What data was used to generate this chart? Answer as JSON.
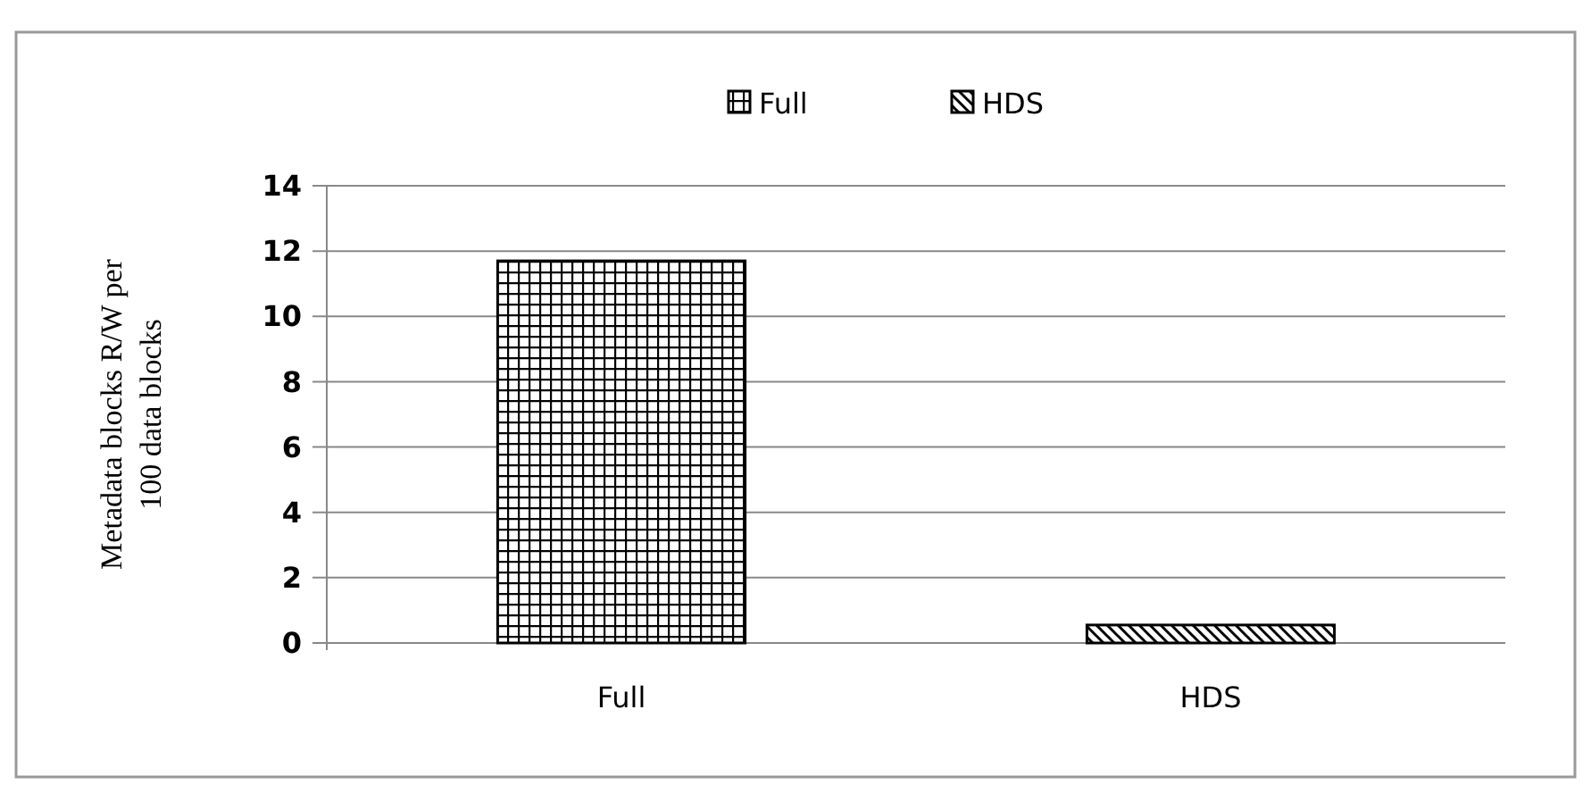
{
  "chart_data": {
    "type": "bar",
    "ylabel": "Metadata blocks R/W per 100 data blocks",
    "categories": [
      "Full",
      "HDS"
    ],
    "series": [
      {
        "name": "Full",
        "color": "#000000",
        "values": [
          11.7,
          null
        ]
      },
      {
        "name": "HDS",
        "color": "#000000",
        "values": [
          null,
          0.55
        ]
      }
    ],
    "ylim": [
      0,
      14
    ],
    "yticks": [
      0,
      2,
      4,
      6,
      8,
      10,
      12,
      14
    ],
    "grid": "y",
    "legend": "top"
  }
}
